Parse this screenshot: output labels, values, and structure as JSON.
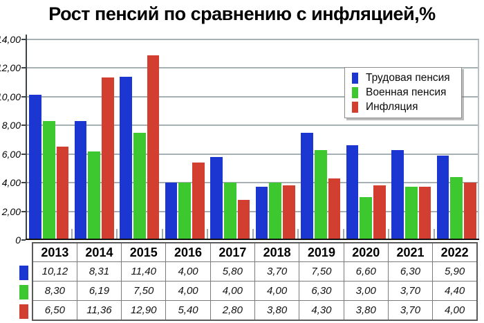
{
  "title": "Рост пенсий по сравнению с инфляцией,%",
  "colors": {
    "trud_pension": "#1c36d2",
    "voen_pension": "#3cc82e",
    "inflation": "#d23f30",
    "gridline": "#a4b0b3",
    "axis": "#111111"
  },
  "chart_data": {
    "type": "bar",
    "title": "Рост пенсий по сравнению с инфляцией,%",
    "categories": [
      "2013",
      "2014",
      "2015",
      "2016",
      "2017",
      "2018",
      "2019",
      "2020",
      "2021",
      "2022"
    ],
    "series": [
      {
        "name": "Трудовая пенсия",
        "color": "#1c36d2",
        "values": [
          10.12,
          8.31,
          11.4,
          4.0,
          5.8,
          3.7,
          7.5,
          6.6,
          6.3,
          5.9
        ]
      },
      {
        "name": "Военная пенсия",
        "color": "#3cc82e",
        "values": [
          8.3,
          6.19,
          7.5,
          4.0,
          4.0,
          4.0,
          6.3,
          3.0,
          3.7,
          4.4
        ]
      },
      {
        "name": "Инфляция",
        "color": "#d23f30",
        "values": [
          6.5,
          11.36,
          12.9,
          5.4,
          2.8,
          3.8,
          4.3,
          3.8,
          3.7,
          4.0
        ]
      }
    ],
    "xlabel": "",
    "ylabel": "",
    "ylim": [
      0,
      14
    ],
    "ytick_step": 2,
    "ytick_labels_top_to_bottom": [
      "14,00",
      "12,00",
      "10,00",
      "8,00",
      "6,00",
      "4,00",
      "2,00",
      "0"
    ],
    "grid": true,
    "legend_position": "upper right"
  },
  "legend": {
    "items": [
      {
        "label": "Трудовая пенсия",
        "color": "#1c36d2"
      },
      {
        "label": "Военная пенсия",
        "color": "#3cc82e"
      },
      {
        "label": "Инфляция",
        "color": "#d23f30"
      }
    ]
  },
  "table": {
    "header": [
      "2013",
      "2014",
      "2015",
      "2016",
      "2017",
      "2018",
      "2019",
      "2020",
      "2021",
      "2022"
    ],
    "rows": [
      {
        "swatch_color": "#1c36d2",
        "cells": [
          "10,12",
          "8,31",
          "11,40",
          "4,00",
          "5,80",
          "3,70",
          "7,50",
          "6,60",
          "6,30",
          "5,90"
        ]
      },
      {
        "swatch_color": "#3cc82e",
        "cells": [
          "8,30",
          "6,19",
          "7,50",
          "4,00",
          "4,00",
          "4,00",
          "6,30",
          "3,00",
          "3,70",
          "4,40"
        ]
      },
      {
        "swatch_color": "#d23f30",
        "cells": [
          "6,50",
          "11,36",
          "12,90",
          "5,40",
          "2,80",
          "3,80",
          "4,30",
          "3,80",
          "3,70",
          "4,00"
        ]
      }
    ]
  }
}
